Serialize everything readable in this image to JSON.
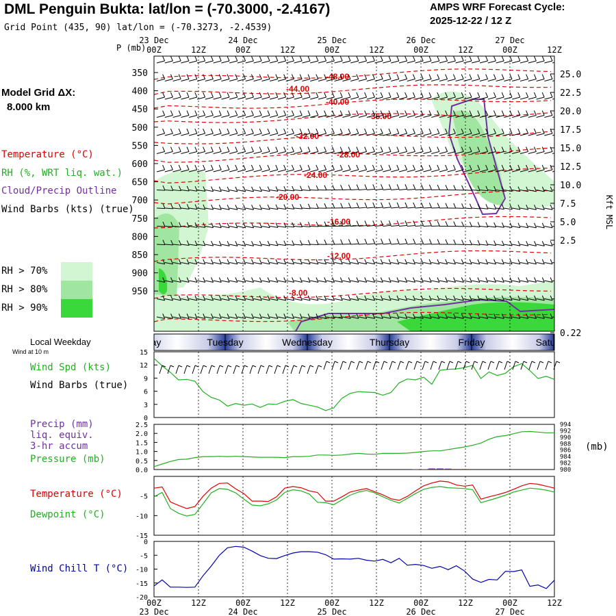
{
  "header": {
    "title": "DML Penguin Bukta:  lat/lon = (-70.3000, -2.4167)",
    "subtitle": "Grid Point (435, 90) lat/lon = (-70.3273, -2.4539)",
    "cycle_label": "AMPS WRF Forecast Cycle:",
    "cycle_value": "2025-12-22 / 12  Z"
  },
  "sidebar": {
    "model_grid": "Model Grid ΔX:",
    "grid_dx": "8.000 km",
    "temperature": "Temperature (°C)",
    "rh": "RH (%, WRT liq. wat.)",
    "cloud": "Cloud/Precip Outline",
    "wind_barbs": "Wind Barbs (kts) (true)",
    "rh_legend": [
      "RH > 70%",
      "RH > 80%",
      "RH > 90%"
    ],
    "local_weekday": "Local Weekday",
    "wind_at": "Wind at 10 m",
    "wind_spd": "Wind Spd (kts)",
    "wind_barbs2": "Wind Barbs (true)",
    "precip": "Precip (mm)",
    "liq": "liq. equiv.",
    "accum": "3-hr accum",
    "pressure": "Pressure (mb)",
    "temp2": "Temperature (°C)",
    "dewpoint": "Dewpoint (°C)",
    "windchill": "Wind Chill T (°C)",
    "pressure_unit": "(mb)"
  },
  "colors": {
    "temperature": "#e00000",
    "rh": "#20b020",
    "cloud": "#7030a0",
    "windchill": "#0000aa",
    "rh70": "#d2f5d2",
    "rh80": "#a0e6a0",
    "rh90": "#3ad83a"
  },
  "chart_data": {
    "type": "line",
    "time_axis": {
      "hour_labels": [
        "00Z",
        "12Z",
        "00Z",
        "12Z",
        "00Z",
        "12Z",
        "00Z",
        "12Z",
        "00Z",
        "12Z"
      ],
      "date_labels": [
        "23 Dec",
        "24 Dec",
        "25 Dec",
        "26 Dec",
        "27 Dec"
      ],
      "weekdays": [
        "Monday",
        "Tuesday",
        "Wednesday",
        "Thursday",
        "Friday",
        "Saturday"
      ],
      "weekdays_shown": [
        "ay",
        "Tuesday",
        "Wednesday",
        "Thursday",
        "Friday",
        "Satu"
      ]
    },
    "cross_section": {
      "ylabel": "P (mb)",
      "pressure_ticks": [
        "350",
        "400",
        "450",
        "500",
        "550",
        "600",
        "650",
        "700",
        "750",
        "800",
        "850",
        "900",
        "950"
      ],
      "height_ticks": [
        "25.0",
        "22.5",
        "20.0",
        "17.5",
        "15.0",
        "12.5",
        "10.0",
        "7.5",
        "5.0",
        "2.5",
        "0.22"
      ],
      "height_label": "Kft MSL",
      "isotherm_labels": [
        "-48.00",
        "-44.00",
        "-40.00",
        "-36.00",
        "-32.00",
        "-28.00",
        "-24.00",
        "-20.00",
        "-16.00",
        "-12.00",
        "-8.00"
      ]
    },
    "panels": [
      {
        "name": "wind_speed",
        "ylabel": "Wind Spd (kts)",
        "yticks": [
          "15",
          "12",
          "9",
          "6",
          "3",
          "0"
        ],
        "ylim": [
          0,
          15
        ],
        "series": [
          {
            "name": "Wind Spd",
            "color": "#20b020",
            "values": [
              13.5,
              11.8,
              10.3,
              8.6,
              8.7,
              8.3,
              5.9,
              4.6,
              4.0,
              2.6,
              3.2,
              2.8,
              3.1,
              2.3,
              3.1,
              3.0,
              3.7,
              4.1,
              3.2,
              2.8,
              2.4,
              1.6,
              2.2,
              4.4,
              5.5,
              5.9,
              5.8,
              5.7,
              5.1,
              5.7,
              7.9,
              8.8,
              8.6,
              9.2,
              7.6,
              10.8,
              11.0,
              11.1,
              11.4,
              11.9,
              8.9,
              10.4,
              9.6,
              10.1,
              11.6,
              12.3,
              10.7,
              8.9,
              9.4,
              8.7
            ]
          }
        ]
      },
      {
        "name": "precip_pressure",
        "ylabel": "Precip (mm)",
        "yticks": [
          "2.5",
          "2.0",
          "1.5",
          "1.0",
          "0.5",
          "0.0"
        ],
        "ylim": [
          0,
          2.5
        ],
        "y2label": "(mb)",
        "y2ticks": [
          "994",
          "992",
          "990",
          "988",
          "986",
          "984",
          "982",
          "980"
        ],
        "y2lim": [
          980,
          994
        ],
        "series": [
          {
            "name": "Pressure",
            "color": "#20b020",
            "values": [
              980.9,
              981.7,
              982.5,
              983.1,
              983.2,
              983.7,
              984.0,
              984.0,
              984.1,
              984.0,
              984.1,
              984.0,
              983.9,
              983.8,
              983.8,
              983.8,
              983.7,
              984.0,
              984.0,
              984.1,
              984.5,
              984.5,
              984.4,
              984.5,
              984.8,
              985.0,
              984.8,
              984.7,
              985.0,
              985.0,
              985.0,
              985.1,
              985.3,
              985.6,
              985.8,
              985.8,
              986.2,
              986.6,
              987.0,
              987.5,
              988.2,
              989.4,
              990.2,
              990.5,
              991.1,
              991.7,
              991.8,
              991.6,
              991.4,
              991.4
            ]
          },
          {
            "name": "Precip",
            "color": "#7030a0",
            "values": [
              0,
              0,
              0,
              0,
              0,
              0,
              0,
              0,
              0,
              0,
              0,
              0,
              0,
              0,
              0,
              0,
              0,
              0,
              0,
              0,
              0,
              0,
              0,
              0,
              0,
              0,
              0,
              0,
              0,
              0,
              0,
              0,
              0.02,
              0.02,
              0.06,
              0.06,
              0.05,
              0.03,
              0.03,
              0,
              0,
              0,
              0,
              0,
              0,
              0,
              0,
              0,
              0,
              0
            ]
          }
        ]
      },
      {
        "name": "temp_dewpoint",
        "ylabel": "Temperature (°C)",
        "yticks": [
          "-5",
          "-10",
          "-15"
        ],
        "ylim": [
          -15,
          0
        ],
        "series": [
          {
            "name": "Temperature",
            "color": "#e00000",
            "values": [
              -3.0,
              -2.7,
              -6.5,
              -7.4,
              -8.2,
              -7.7,
              -5.1,
              -3.0,
              -1.8,
              -1.7,
              -3.2,
              -4.4,
              -6.3,
              -6.3,
              -6.4,
              -5.2,
              -3.0,
              -2.6,
              -2.9,
              -3.7,
              -4.1,
              -6.3,
              -6.3,
              -5.2,
              -4.0,
              -3.5,
              -3.1,
              -3.9,
              -4.7,
              -5.7,
              -6.1,
              -5.1,
              -3.7,
              -2.4,
              -1.7,
              -1.2,
              -1.4,
              -2.2,
              -2.5,
              -2.2,
              -5.8,
              -5.2,
              -4.7,
              -4.1,
              -3.3,
              -2.4,
              -1.8,
              -2.0,
              -2.5,
              -3.0
            ]
          },
          {
            "name": "Dewpoint",
            "color": "#20b020",
            "values": [
              -5.2,
              -4.1,
              -8.2,
              -9.4,
              -10.1,
              -9.7,
              -7.0,
              -4.2,
              -3.1,
              -3.3,
              -4.2,
              -5.8,
              -7.3,
              -7.5,
              -7.0,
              -6.0,
              -4.1,
              -3.4,
              -3.7,
              -4.5,
              -6.6,
              -6.7,
              -7.2,
              -6.0,
              -4.8,
              -4.0,
              -3.6,
              -4.2,
              -5.2,
              -6.1,
              -6.8,
              -5.6,
              -4.4,
              -3.3,
              -2.8,
              -2.6,
              -2.9,
              -3.0,
              -3.1,
              -3.4,
              -6.7,
              -6.1,
              -5.5,
              -4.8,
              -4.0,
              -3.5,
              -3.0,
              -3.2,
              -3.5,
              -4.0
            ]
          }
        ]
      },
      {
        "name": "wind_chill",
        "ylabel": "Wind Chill T (°C)",
        "yticks": [
          "0",
          "-5",
          "-10",
          "-15",
          "-20"
        ],
        "ylim": [
          -20,
          0
        ],
        "series": [
          {
            "name": "Wind Chill",
            "color": "#0000aa",
            "values": [
              -16.1,
              -13.9,
              -16.5,
              -16.5,
              -16.6,
              -16.5,
              -12.4,
              -8.9,
              -5.0,
              -2.3,
              -1.8,
              -2.1,
              -3.5,
              -5.1,
              -6.1,
              -6.2,
              -5.1,
              -4.2,
              -3.7,
              -3.7,
              -3.9,
              -4.8,
              -6.4,
              -6.3,
              -6.4,
              -6.1,
              -6.8,
              -7.1,
              -6.5,
              -7.7,
              -6.1,
              -8.6,
              -8.3,
              -8.7,
              -9.7,
              -9.0,
              -10.2,
              -8.8,
              -10.7,
              -13.6,
              -14.8,
              -13.7,
              -13.9,
              -10.8,
              -10.9,
              -10.3,
              -16.2,
              -15.7,
              -17.0,
              -14.0
            ]
          }
        ]
      }
    ]
  }
}
